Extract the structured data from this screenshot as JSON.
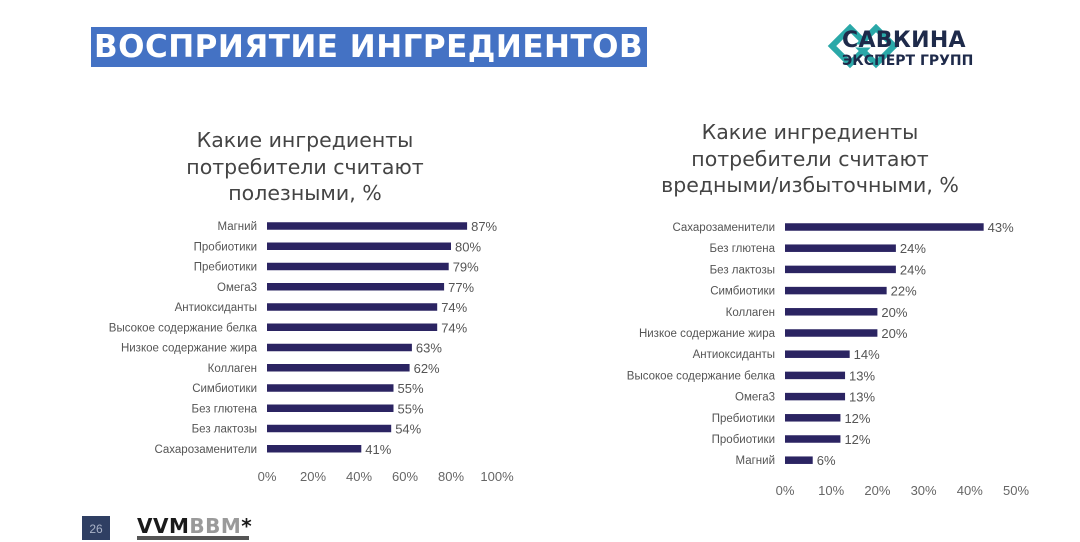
{
  "header": {
    "title": "ВОСПРИЯТИЕ ИНГРЕДИЕНТОВ"
  },
  "logo": {
    "line1": "САВКИНА",
    "line2": "ЭКСПЕРТ ГРУПП",
    "icon": "savkina-logo-icon",
    "color": "#2aa8a8"
  },
  "footer": {
    "page_number": "26",
    "brand_part1": "VVM",
    "brand_part2": "BBM",
    "brand_star": "*"
  },
  "colors": {
    "bar": "#2b2462",
    "title_band": "#4472c4"
  },
  "chart_data": [
    {
      "type": "bar",
      "orientation": "horizontal",
      "title": "Какие ингредиенты потребители считают полезными, %",
      "title_lines": [
        "Какие ингредиенты",
        "потребители считают",
        "полезными, %"
      ],
      "categories": [
        "Магний",
        "Пробиотики",
        "Пребиотики",
        "Омега3",
        "Антиоксиданты",
        "Высокое содержание белка",
        "Низкое содержание жира",
        "Коллаген",
        "Симбиотики",
        "Без глютена",
        "Без лактозы",
        "Сахарозаменители"
      ],
      "values": [
        87,
        80,
        79,
        77,
        74,
        74,
        63,
        62,
        55,
        55,
        54,
        41
      ],
      "value_labels": [
        "87%",
        "80%",
        "79%",
        "77%",
        "74%",
        "74%",
        "63%",
        "62%",
        "55%",
        "55%",
        "54%",
        "41%"
      ],
      "xlim": [
        0,
        100
      ],
      "ticks": [
        "0%",
        "20%",
        "40%",
        "60%",
        "80%",
        "100%"
      ],
      "tick_values": [
        0,
        20,
        40,
        60,
        80,
        100
      ],
      "grid": false,
      "legend": "none"
    },
    {
      "type": "bar",
      "orientation": "horizontal",
      "title": "Какие ингредиенты потребители считают вредными/избыточными, %",
      "title_lines": [
        "Какие ингредиенты",
        "потребители считают",
        "вредными/избыточными, %"
      ],
      "categories": [
        "Сахарозаменители",
        "Без глютена",
        "Без лактозы",
        "Симбиотики",
        "Коллаген",
        "Низкое содержание жира",
        "Антиоксиданты",
        "Высокое содержание белка",
        "Омега3",
        "Пребиотики",
        "Пробиотики",
        "Магний"
      ],
      "values": [
        43,
        24,
        24,
        22,
        20,
        20,
        14,
        13,
        13,
        12,
        12,
        6
      ],
      "value_labels": [
        "43%",
        "24%",
        "24%",
        "22%",
        "20%",
        "20%",
        "14%",
        "13%",
        "13%",
        "12%",
        "12%",
        "6%"
      ],
      "xlim": [
        0,
        50
      ],
      "ticks": [
        "0%",
        "10%",
        "20%",
        "30%",
        "40%",
        "50%"
      ],
      "tick_values": [
        0,
        10,
        20,
        30,
        40,
        50
      ],
      "grid": false,
      "legend": "none"
    }
  ]
}
